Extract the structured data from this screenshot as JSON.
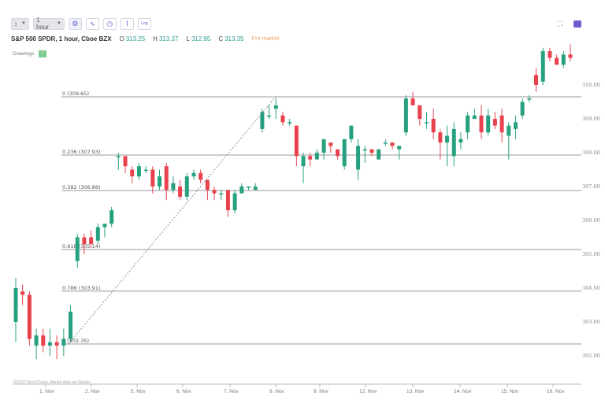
{
  "toolbar": {
    "chart_type_label": "↕",
    "interval_label": "1 hour",
    "buttons": [
      {
        "name": "settings-icon",
        "glyph": "⚙"
      },
      {
        "name": "indicator-icon",
        "glyph": "∿"
      },
      {
        "name": "clock-icon",
        "glyph": "◷"
      },
      {
        "name": "compare-icon",
        "glyph": "⌇"
      },
      {
        "name": "log-scale-button",
        "glyph": "Log"
      }
    ]
  },
  "header": {
    "title": "S&P 500 SPDR, 1 hour, Cboe BZX",
    "open_label": "O",
    "open": "313.25",
    "high_label": "H",
    "high": "313.37",
    "low_label": "L",
    "low": "312.95",
    "close_label": "C",
    "close": "313.35",
    "session": "Pre-market"
  },
  "drawings": {
    "label": "Drawings",
    "toggle": "✓"
  },
  "top_right": {
    "fullscreen": "⛶",
    "camera": "camera"
  },
  "footer": {
    "credit": "©2019 StockCharts. Market data via Xignite."
  },
  "colors": {
    "up": "#26a17f",
    "down": "#e8424e",
    "grid": "#9a9a9a",
    "accent": "#6a5acd"
  },
  "chart_data": {
    "type": "candlestick",
    "title": "S&P 500 SPDR, 1 hour, Cboe BZX",
    "xlabel": "",
    "ylabel": "",
    "ylim": [
      301.6,
      311.4
    ],
    "yticks": [
      "302.00",
      "303.00",
      "304.00",
      "305.00",
      "306.00",
      "307.00",
      "308.00",
      "309.00",
      "310.00"
    ],
    "xticks": [
      "1. Nov",
      "2. Nov",
      "5. Nov",
      "6. Nov",
      "7. Nov",
      "8. Nov",
      "9. Nov",
      "12. Nov",
      "13. Nov",
      "14. Nov",
      "15. Nov",
      "16. Nov"
    ],
    "fibonacci": [
      {
        "level": "0",
        "price": "309.65"
      },
      {
        "level": "0.236",
        "price": "307.93"
      },
      {
        "level": "0.382",
        "price": "306.88"
      },
      {
        "level": "0.618",
        "price": "305.14"
      },
      {
        "level": "0.786",
        "price": "303.91"
      },
      {
        "level": "1",
        "price": "302.35"
      }
    ],
    "trendline": {
      "from": 302.35,
      "to": 309.65
    },
    "candles": [
      [
        303.0,
        304.0,
        304.3,
        302.4
      ],
      [
        303.9,
        303.8,
        304.1,
        303.5
      ],
      [
        303.8,
        302.5,
        303.9,
        302.3
      ],
      [
        302.3,
        302.6,
        302.8,
        301.9
      ],
      [
        302.6,
        302.3,
        302.8,
        302.1
      ],
      [
        302.3,
        302.4,
        302.8,
        302.0
      ],
      [
        302.4,
        302.3,
        302.6,
        301.9
      ],
      [
        302.3,
        302.5,
        302.8,
        302.0
      ],
      [
        302.5,
        303.3,
        303.5,
        302.4
      ],
      [
        304.8,
        305.5,
        305.6,
        304.6
      ],
      [
        305.5,
        305.3,
        305.6,
        305.0
      ],
      [
        305.5,
        305.3,
        305.7,
        305.2
      ],
      [
        305.4,
        305.8,
        305.9,
        305.3
      ],
      [
        305.8,
        305.9,
        305.9,
        305.5
      ],
      [
        305.9,
        306.3,
        306.4,
        305.8
      ],
      [
        307.9,
        307.9,
        308.0,
        307.5
      ],
      [
        307.9,
        307.6,
        307.9,
        307.4
      ],
      [
        307.5,
        307.3,
        307.6,
        307.1
      ],
      [
        307.3,
        307.6,
        307.7,
        307.2
      ],
      [
        307.5,
        307.5,
        307.6,
        307.4
      ],
      [
        307.5,
        307.0,
        307.6,
        306.8
      ],
      [
        307.0,
        307.3,
        307.5,
        306.9
      ],
      [
        307.6,
        306.9,
        307.7,
        306.6
      ],
      [
        306.9,
        307.1,
        307.3,
        306.8
      ],
      [
        307.0,
        306.7,
        307.2,
        306.6
      ],
      [
        306.7,
        307.3,
        307.4,
        306.6
      ],
      [
        307.3,
        307.4,
        307.5,
        307.2
      ],
      [
        307.4,
        307.2,
        307.5,
        307.1
      ],
      [
        307.2,
        306.9,
        307.2,
        306.6
      ],
      [
        306.9,
        306.8,
        307.0,
        306.6
      ],
      [
        306.8,
        306.8,
        306.9,
        306.6
      ],
      [
        306.9,
        306.3,
        306.9,
        306.1
      ],
      [
        306.3,
        306.8,
        306.9,
        306.2
      ],
      [
        306.8,
        307.0,
        307.1,
        306.8
      ],
      [
        307.0,
        307.0,
        307.0,
        306.9
      ],
      [
        306.9,
        307.0,
        307.1,
        306.9
      ],
      [
        308.7,
        309.2,
        309.3,
        308.6
      ],
      [
        309.1,
        309.1,
        309.4,
        309.0
      ],
      [
        309.3,
        309.4,
        309.6,
        309.0
      ],
      [
        309.1,
        308.9,
        309.2,
        308.8
      ],
      [
        308.9,
        308.9,
        309.0,
        308.8
      ],
      [
        308.8,
        307.9,
        308.8,
        307.6
      ],
      [
        307.6,
        307.9,
        308.0,
        307.1
      ],
      [
        307.9,
        307.8,
        308.0,
        307.6
      ],
      [
        307.8,
        308.0,
        308.1,
        307.8
      ],
      [
        308.0,
        308.4,
        308.4,
        307.8
      ],
      [
        308.3,
        308.2,
        308.3,
        308.0
      ],
      [
        308.1,
        307.9,
        308.1,
        307.8
      ],
      [
        307.6,
        308.4,
        308.4,
        307.5
      ],
      [
        308.4,
        308.8,
        308.8,
        308.3
      ],
      [
        307.5,
        308.2,
        308.4,
        307.2
      ],
      [
        308.1,
        308.1,
        308.2,
        307.7
      ],
      [
        308.1,
        308.0,
        308.1,
        307.9
      ],
      [
        307.8,
        308.1,
        308.1,
        307.9
      ],
      [
        308.3,
        308.3,
        308.4,
        308.2
      ],
      [
        308.3,
        308.2,
        308.3,
        308.1
      ],
      [
        308.1,
        308.2,
        308.2,
        307.8
      ],
      [
        308.6,
        309.6,
        309.7,
        308.5
      ],
      [
        309.6,
        309.4,
        309.8,
        309.4
      ],
      [
        309.4,
        309.0,
        309.4,
        308.8
      ],
      [
        308.9,
        308.9,
        309.2,
        308.7
      ],
      [
        309.0,
        308.6,
        309.3,
        308.4
      ],
      [
        308.6,
        308.3,
        308.7,
        307.8
      ],
      [
        308.3,
        308.5,
        308.8,
        307.6
      ],
      [
        307.9,
        308.7,
        308.9,
        307.6
      ],
      [
        308.3,
        308.4,
        308.6,
        308.1
      ],
      [
        308.6,
        309.1,
        309.2,
        308.4
      ],
      [
        309.0,
        309.1,
        309.3,
        309.0
      ],
      [
        309.1,
        308.6,
        309.4,
        308.4
      ],
      [
        308.6,
        309.1,
        309.3,
        308.5
      ],
      [
        309.0,
        308.8,
        309.2,
        308.7
      ],
      [
        309.1,
        308.6,
        309.3,
        308.3
      ],
      [
        308.5,
        308.8,
        308.9,
        307.8
      ],
      [
        308.7,
        308.9,
        309.1,
        308.4
      ],
      [
        309.1,
        309.5,
        309.6,
        309.0
      ],
      [
        309.6,
        309.6,
        309.7,
        309.5
      ],
      [
        310.3,
        310.0,
        310.5,
        309.8
      ],
      [
        310.1,
        311.0,
        311.1,
        310.0
      ],
      [
        311.0,
        310.8,
        311.1,
        310.7
      ],
      [
        310.8,
        310.6,
        310.9,
        310.6
      ],
      [
        310.6,
        310.9,
        311.0,
        310.5
      ],
      [
        310.9,
        310.8,
        311.2,
        310.7
      ]
    ]
  }
}
